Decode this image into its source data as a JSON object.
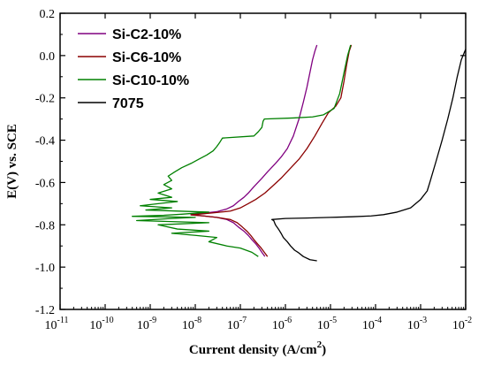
{
  "chart_data": {
    "type": "line",
    "xlabel": "Current density (A/cm",
    "xlabel_sup": "2",
    "xlabel_end": ")",
    "ylabel": "E(V) vs. SCE",
    "xscale": "log",
    "xlim": [
      1e-11,
      0.01
    ],
    "ylim": [
      -1.2,
      0.2
    ],
    "x_ticks": [
      {
        "base": "10",
        "exp": "-11"
      },
      {
        "base": "10",
        "exp": "-10"
      },
      {
        "base": "10",
        "exp": "-9"
      },
      {
        "base": "10",
        "exp": "-8"
      },
      {
        "base": "10",
        "exp": "-7"
      },
      {
        "base": "10",
        "exp": "-6"
      },
      {
        "base": "10",
        "exp": "-5"
      },
      {
        "base": "10",
        "exp": "-4"
      },
      {
        "base": "10",
        "exp": "-3"
      },
      {
        "base": "10",
        "exp": "-2"
      }
    ],
    "y_ticks": [
      "-1.2",
      "-1.0",
      "-0.8",
      "-0.6",
      "-0.4",
      "-0.2",
      "0.0",
      "0.2"
    ],
    "legend_position": "top-left",
    "series": [
      {
        "name": "Si-C2-10%",
        "color": "#800080",
        "points": [
          [
            3.5e-07,
            -0.95
          ],
          [
            3e-07,
            -0.93
          ],
          [
            2.6e-07,
            -0.91
          ],
          [
            2.2e-07,
            -0.89
          ],
          [
            1.8e-07,
            -0.87
          ],
          [
            1.5e-07,
            -0.85
          ],
          [
            1.2e-07,
            -0.83
          ],
          [
            9e-08,
            -0.81
          ],
          [
            7e-08,
            -0.79
          ],
          [
            5e-08,
            -0.775
          ],
          [
            3e-08,
            -0.765
          ],
          [
            1.5e-08,
            -0.758
          ],
          [
            8e-09,
            -0.752
          ],
          [
            1.5e-08,
            -0.745
          ],
          [
            3e-08,
            -0.738
          ],
          [
            5e-08,
            -0.725
          ],
          [
            7e-08,
            -0.71
          ],
          [
            9e-08,
            -0.69
          ],
          [
            1.2e-07,
            -0.67
          ],
          [
            1.5e-07,
            -0.65
          ],
          [
            2e-07,
            -0.62
          ],
          [
            3e-07,
            -0.58
          ],
          [
            4e-07,
            -0.55
          ],
          [
            6e-07,
            -0.51
          ],
          [
            8e-07,
            -0.48
          ],
          [
            1.1e-06,
            -0.44
          ],
          [
            1.5e-06,
            -0.38
          ],
          [
            2e-06,
            -0.3
          ],
          [
            2.5e-06,
            -0.22
          ],
          [
            3e-06,
            -0.15
          ],
          [
            3.5e-06,
            -0.08
          ],
          [
            4e-06,
            -0.02
          ],
          [
            4.5e-06,
            0.02
          ],
          [
            5e-06,
            0.05
          ]
        ]
      },
      {
        "name": "Si-C6-10%",
        "color": "#8b0000",
        "points": [
          [
            4e-07,
            -0.95
          ],
          [
            3.4e-07,
            -0.93
          ],
          [
            2.9e-07,
            -0.91
          ],
          [
            2.4e-07,
            -0.89
          ],
          [
            2e-07,
            -0.87
          ],
          [
            1.7e-07,
            -0.85
          ],
          [
            1.4e-07,
            -0.83
          ],
          [
            1.1e-07,
            -0.81
          ],
          [
            8.5e-08,
            -0.79
          ],
          [
            6e-08,
            -0.775
          ],
          [
            3e-08,
            -0.765
          ],
          [
            1.5e-08,
            -0.758
          ],
          [
            8e-09,
            -0.753
          ],
          [
            1.5e-08,
            -0.748
          ],
          [
            3e-08,
            -0.742
          ],
          [
            6e-08,
            -0.735
          ],
          [
            1e-07,
            -0.72
          ],
          [
            1.5e-07,
            -0.7
          ],
          [
            2.2e-07,
            -0.68
          ],
          [
            3.5e-07,
            -0.65
          ],
          [
            5e-07,
            -0.62
          ],
          [
            8e-07,
            -0.58
          ],
          [
            1.2e-06,
            -0.54
          ],
          [
            2e-06,
            -0.49
          ],
          [
            3e-06,
            -0.44
          ],
          [
            4.5e-06,
            -0.38
          ],
          [
            6.5e-06,
            -0.32
          ],
          [
            9e-06,
            -0.27
          ],
          [
            1.3e-05,
            -0.24
          ],
          [
            1.7e-05,
            -0.2
          ],
          [
            2e-05,
            -0.12
          ],
          [
            2.3e-05,
            -0.04
          ],
          [
            2.6e-05,
            0.02
          ],
          [
            2.9e-05,
            0.05
          ]
        ]
      },
      {
        "name": "Si-C10-10%",
        "color": "#008000",
        "points": [
          [
            2.5e-07,
            -0.95
          ],
          [
            1.8e-07,
            -0.93
          ],
          [
            1e-07,
            -0.91
          ],
          [
            5e-08,
            -0.9
          ],
          [
            2e-08,
            -0.88
          ],
          [
            3e-08,
            -0.86
          ],
          [
            1e-08,
            -0.85
          ],
          [
            3e-09,
            -0.84
          ],
          [
            2e-08,
            -0.83
          ],
          [
            4e-09,
            -0.82
          ],
          [
            1.5e-09,
            -0.8
          ],
          [
            2e-08,
            -0.79
          ],
          [
            5e-10,
            -0.78
          ],
          [
            3e-09,
            -0.77
          ],
          [
            1e-08,
            -0.765
          ],
          [
            4e-10,
            -0.76
          ],
          [
            2e-09,
            -0.755
          ],
          [
            5e-09,
            -0.75
          ],
          [
            2e-08,
            -0.74
          ],
          [
            8e-10,
            -0.73
          ],
          [
            3e-09,
            -0.72
          ],
          [
            6e-10,
            -0.71
          ],
          [
            1.5e-09,
            -0.7
          ],
          [
            4e-09,
            -0.69
          ],
          [
            1e-09,
            -0.68
          ],
          [
            3e-09,
            -0.67
          ],
          [
            1.5e-09,
            -0.65
          ],
          [
            3e-09,
            -0.63
          ],
          [
            2e-09,
            -0.61
          ],
          [
            3e-09,
            -0.59
          ],
          [
            2.5e-09,
            -0.57
          ],
          [
            3.5e-09,
            -0.55
          ],
          [
            5e-09,
            -0.53
          ],
          [
            8e-09,
            -0.51
          ],
          [
            1.2e-08,
            -0.49
          ],
          [
            1.8e-08,
            -0.47
          ],
          [
            2.5e-08,
            -0.45
          ],
          [
            3e-08,
            -0.43
          ],
          [
            3.5e-08,
            -0.41
          ],
          [
            4e-08,
            -0.39
          ],
          [
            2e-07,
            -0.38
          ],
          [
            2.5e-07,
            -0.36
          ],
          [
            3e-07,
            -0.34
          ],
          [
            3.2e-07,
            -0.31
          ],
          [
            3.4e-07,
            -0.3
          ],
          [
            1.5e-06,
            -0.295
          ],
          [
            4e-06,
            -0.29
          ],
          [
            7e-06,
            -0.28
          ],
          [
            1.2e-05,
            -0.25
          ],
          [
            1.6e-05,
            -0.18
          ],
          [
            2e-05,
            -0.08
          ],
          [
            2.4e-05,
            0.0
          ],
          [
            2.8e-05,
            0.05
          ]
        ]
      },
      {
        "name": "7075",
        "color": "#000000",
        "points": [
          [
            5e-06,
            -0.97
          ],
          [
            3.5e-06,
            -0.965
          ],
          [
            2.5e-06,
            -0.95
          ],
          [
            1.9e-06,
            -0.93
          ],
          [
            1.6e-06,
            -0.92
          ],
          [
            1.3e-06,
            -0.9
          ],
          [
            1.1e-06,
            -0.88
          ],
          [
            9e-07,
            -0.86
          ],
          [
            8e-07,
            -0.84
          ],
          [
            7e-07,
            -0.82
          ],
          [
            6e-07,
            -0.8
          ],
          [
            5.5e-07,
            -0.78
          ],
          [
            5e-07,
            -0.775
          ],
          [
            1e-06,
            -0.77
          ],
          [
            3e-06,
            -0.768
          ],
          [
            1e-05,
            -0.765
          ],
          [
            3e-05,
            -0.762
          ],
          [
            8e-05,
            -0.758
          ],
          [
            0.00015,
            -0.752
          ],
          [
            0.0003,
            -0.74
          ],
          [
            0.0006,
            -0.72
          ],
          [
            0.001,
            -0.68
          ],
          [
            0.0014,
            -0.64
          ],
          [
            0.0016,
            -0.6
          ],
          [
            0.0022,
            -0.5
          ],
          [
            0.003,
            -0.4
          ],
          [
            0.004,
            -0.3
          ],
          [
            0.0052,
            -0.2
          ],
          [
            0.0065,
            -0.1
          ],
          [
            0.008,
            -0.02
          ],
          [
            0.01,
            0.03
          ]
        ]
      }
    ]
  }
}
